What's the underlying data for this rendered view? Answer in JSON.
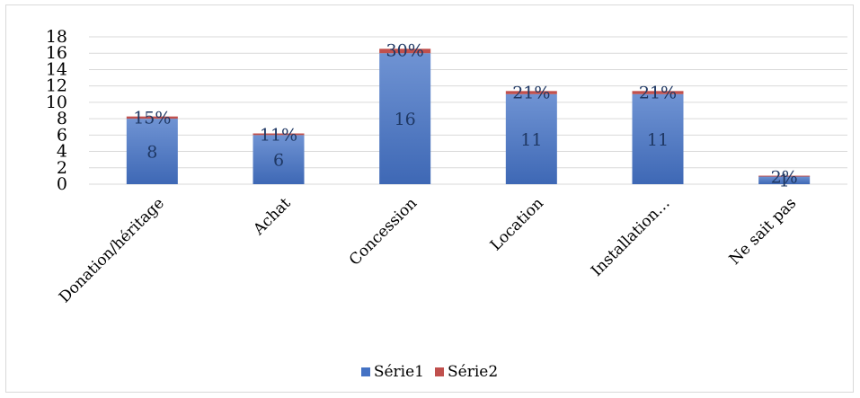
{
  "chart_data": {
    "type": "bar",
    "stacked": true,
    "categories": [
      "Donation/héritage",
      "Achat",
      "Concession",
      "Location",
      "Installation…",
      "Ne sait pas"
    ],
    "series": [
      {
        "name": "Série1",
        "values": [
          8,
          6,
          16,
          11,
          11,
          1
        ],
        "labels": [
          "8",
          "6",
          "16",
          "11",
          "11",
          "1"
        ],
        "color": "#4472c4"
      },
      {
        "name": "Série2",
        "values": [
          0.15,
          0.11,
          0.3,
          0.21,
          0.21,
          0.02
        ],
        "labels": [
          "15%",
          "11%",
          "30%",
          "21%",
          "21%",
          "2%"
        ],
        "color": "#c0504d"
      }
    ],
    "ylim": [
      0,
      18
    ],
    "yticks": [
      0,
      2,
      4,
      6,
      8,
      10,
      12,
      14,
      16,
      18
    ],
    "grid": true,
    "legend_position": "bottom",
    "title": "",
    "xlabel": "",
    "ylabel": ""
  }
}
